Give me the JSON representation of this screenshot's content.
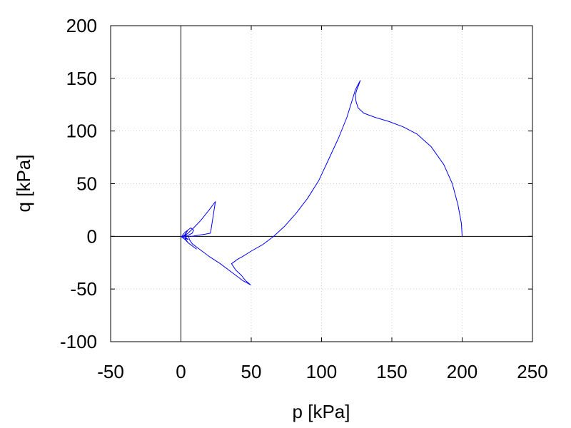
{
  "chart_data": {
    "type": "line",
    "xlabel": "p [kPa]",
    "ylabel": "q [kPa]",
    "xlim": [
      -50,
      250
    ],
    "ylim": [
      -100,
      200
    ],
    "xticks": [
      "-50",
      "0",
      "50",
      "100",
      "150",
      "200",
      "250"
    ],
    "yticks": [
      "-100",
      "-50",
      "0",
      "50",
      "100",
      "150",
      "200"
    ],
    "grid": true,
    "series_color": "#0000ff",
    "series": [
      {
        "x": [
          200,
          199.5,
          197,
          193,
          187,
          178,
          168,
          158,
          148,
          138,
          130,
          126,
          124.5,
          124,
          125,
          126.5,
          127.5,
          124,
          122,
          118,
          112,
          105,
          98,
          90,
          82,
          74,
          66,
          58,
          50,
          44,
          40,
          38,
          36,
          39,
          43,
          46,
          49.5,
          44,
          36,
          28,
          20,
          12,
          8,
          6,
          5.5,
          8,
          12,
          17,
          21,
          24.5,
          20,
          14,
          9,
          5,
          3,
          1,
          0,
          3,
          5,
          7,
          9,
          11,
          9,
          5,
          3,
          4,
          7,
          9,
          8,
          5,
          2,
          0,
          2,
          4,
          5,
          3,
          1,
          3,
          5,
          2,
          0
        ],
        "y": [
          0,
          12,
          30,
          50,
          68,
          85,
          97,
          104,
          109,
          113,
          117,
          122,
          128,
          134,
          139,
          144,
          148,
          139,
          130,
          113,
          93,
          73,
          53,
          36,
          22,
          10,
          0,
          -8,
          -14,
          -19,
          -22,
          -24,
          -26,
          -32,
          -37,
          -42,
          -46,
          -42,
          -34,
          -26,
          -19,
          -11,
          -7,
          -3,
          0,
          0,
          1,
          2,
          3,
          33,
          25,
          15,
          8,
          3,
          1,
          0,
          0,
          -3,
          -6,
          -8,
          -10,
          -12,
          -10,
          -6,
          -2,
          5,
          8,
          6,
          3,
          1,
          0,
          0,
          0,
          4,
          6,
          4,
          1,
          0,
          -3,
          -1,
          0
        ]
      }
    ]
  }
}
